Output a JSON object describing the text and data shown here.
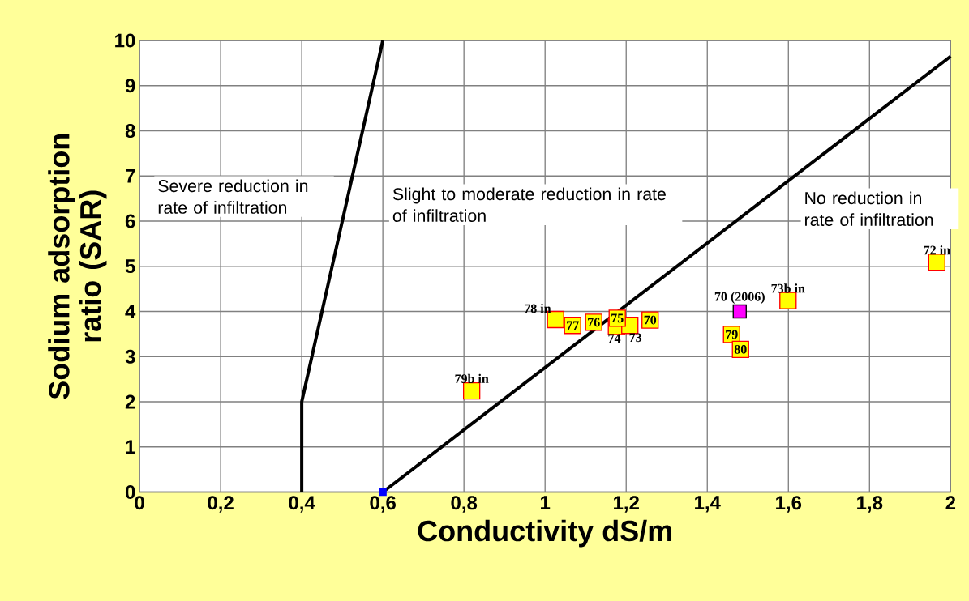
{
  "chart_data": {
    "type": "scatter",
    "xlabel": "Conductivity dS/m",
    "ylabel": "Sodium adsorption ratio (SAR)",
    "xlim": [
      0,
      2
    ],
    "ylim": [
      0,
      10
    ],
    "xticks": [
      0,
      {
        "value": 0.2,
        "label": "0,2"
      },
      {
        "value": 0.4,
        "label": "0,4"
      },
      {
        "value": 0.6,
        "label": "0,6"
      },
      {
        "value": 0.8,
        "label": "0,8"
      },
      1,
      {
        "value": 1.2,
        "label": "1,2"
      },
      {
        "value": 1.4,
        "label": "1,4"
      },
      {
        "value": 1.6,
        "label": "1,6"
      },
      {
        "value": 1.8,
        "label": "1,8"
      },
      2
    ],
    "yticks": [
      0,
      1,
      2,
      3,
      4,
      5,
      6,
      7,
      8,
      9,
      10
    ],
    "grid": true,
    "legend": false,
    "annotations": [
      "Severe reduction in rate of infiltration",
      "Slight to moderate reduction in rate of infiltration",
      "No reduction in rate of infiltration"
    ],
    "series": [
      {
        "type": "line",
        "color": "#000000",
        "marker": "none",
        "x": [
          0.4,
          0.4,
          0.6
        ],
        "values": [
          0,
          2,
          10
        ]
      },
      {
        "type": "line",
        "color": "#000000",
        "marker": "none",
        "x": [
          0.6,
          2
        ],
        "values": [
          0,
          9.65
        ]
      },
      {
        "color": "#0000ff",
        "marker": "square",
        "x": [
          0.6
        ],
        "values": [
          0
        ]
      },
      {
        "name": "78 in",
        "color": "#ffff00",
        "marker": "square",
        "x": [
          1.026
        ],
        "values": [
          3.82
        ]
      },
      {
        "name": "77",
        "color": "#ffff00",
        "marker": "square",
        "x": [
          1.068
        ],
        "values": [
          3.69
        ]
      },
      {
        "name": "76",
        "color": "#ffff00",
        "marker": "square",
        "x": [
          1.12
        ],
        "values": [
          3.76
        ]
      },
      {
        "name": "74",
        "color": "#ffff00",
        "marker": "square",
        "x": [
          1.176
        ],
        "values": [
          3.67
        ]
      },
      {
        "name": "73",
        "color": "#ffff00",
        "marker": "square",
        "x": [
          1.209
        ],
        "values": [
          3.69
        ]
      },
      {
        "name": "75",
        "color": "#ffff00",
        "marker": "square",
        "x": [
          1.178
        ],
        "values": [
          3.85
        ]
      },
      {
        "name": "70",
        "color": "#ffff00",
        "marker": "square",
        "x": [
          1.259
        ],
        "values": [
          3.81
        ]
      },
      {
        "name": "79",
        "color": "#ffff00",
        "marker": "square",
        "x": [
          1.46
        ],
        "values": [
          3.49
        ]
      },
      {
        "name": "80",
        "color": "#ffff00",
        "marker": "square",
        "x": [
          1.482
        ],
        "values": [
          3.16
        ]
      },
      {
        "name": "73b in",
        "color": "#ffff00",
        "marker": "square",
        "x": [
          1.599
        ],
        "values": [
          4.24
        ]
      },
      {
        "name": "72 in",
        "color": "#ffff00",
        "marker": "square",
        "x": [
          1.966
        ],
        "values": [
          5.09
        ]
      },
      {
        "name": "79b in",
        "color": "#ffff00",
        "marker": "square",
        "x": [
          0.819
        ],
        "values": [
          2.24
        ]
      },
      {
        "name": "70 (2006)",
        "color": "#ff00ff",
        "marker": "square",
        "x": [
          1.48
        ],
        "values": [
          4.0
        ]
      }
    ]
  }
}
